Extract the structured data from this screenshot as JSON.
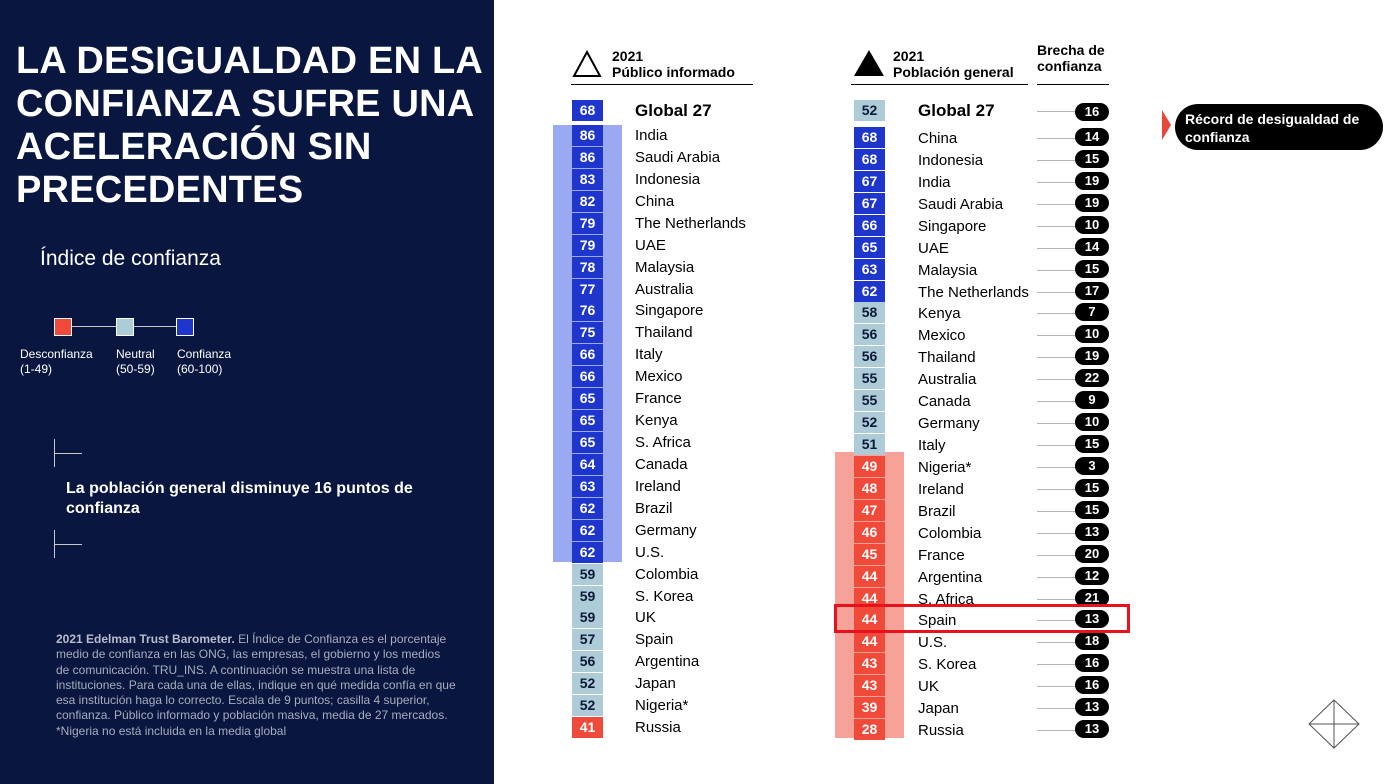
{
  "title": "LA DESIGUALDAD EN LA CONFIANZA SUFRE UNA ACELERACIÓN SIN PRECEDENTES",
  "subtitle": "Índice de confianza",
  "legend": [
    {
      "label": "Desconfianza",
      "range": "(1-49)",
      "color": "#f04b3a"
    },
    {
      "label": "Neutral",
      "range": "(50-59)",
      "color": "#aecbd8"
    },
    {
      "label": "Confianza",
      "range": "(60-100)",
      "color": "#1f36cc"
    }
  ],
  "callout": "La población general disminuye 16 puntos de confianza",
  "footnote": {
    "lead": "2021 Edelman Trust Barometer.",
    "body": " El Índice de Confianza es el porcentaje medio de confianza en las ONG, las empresas, el gobierno y los medios de comunicación. TRU_INS. A continuación se muestra una lista de instituciones. Para cada una de ellas, indique en qué medida confía en que esa institución haga lo correcto. Escala de 9 puntos; casilla 4 superior, confianza. Público informado y población masiva, media de 27 mercados.",
    "note": "*Nigeria no está incluida en la media global"
  },
  "colors": {
    "distrust": "#f04b3a",
    "neutral": "#aecbd8",
    "trust": "#1f36cc",
    "distrust_band": "#f7a298",
    "trust_band": "#9aa9f2",
    "navy": "#09163f"
  },
  "headers": {
    "informed_line1": "2021",
    "informed_line2": "Público informado",
    "general_line1": "2021",
    "general_line2": "Población general",
    "gap_line1": "Brecha de",
    "gap_line2": "confianza"
  },
  "record_label": "Récord de desigualdad de confianza",
  "highlighted_country": "Spain",
  "chart_data": [
    {
      "type": "table",
      "title": "2021 Público informado",
      "global": {
        "label": "Global 27",
        "value": 68
      },
      "rows": [
        {
          "country": "India",
          "value": 86
        },
        {
          "country": "Saudi Arabia",
          "value": 86
        },
        {
          "country": "Indonesia",
          "value": 83
        },
        {
          "country": "China",
          "value": 82
        },
        {
          "country": "The Netherlands",
          "value": 79
        },
        {
          "country": "UAE",
          "value": 79
        },
        {
          "country": "Malaysia",
          "value": 78
        },
        {
          "country": "Australia",
          "value": 77
        },
        {
          "country": "Singapore",
          "value": 76
        },
        {
          "country": "Thailand",
          "value": 75
        },
        {
          "country": "Italy",
          "value": 66
        },
        {
          "country": "Mexico",
          "value": 66
        },
        {
          "country": "France",
          "value": 65
        },
        {
          "country": "Kenya",
          "value": 65
        },
        {
          "country": "S. Africa",
          "value": 65
        },
        {
          "country": "Canada",
          "value": 64
        },
        {
          "country": "Ireland",
          "value": 63
        },
        {
          "country": "Brazil",
          "value": 62
        },
        {
          "country": "Germany",
          "value": 62
        },
        {
          "country": "U.S.",
          "value": 62
        },
        {
          "country": "Colombia",
          "value": 59
        },
        {
          "country": "S. Korea",
          "value": 59
        },
        {
          "country": "UK",
          "value": 59
        },
        {
          "country": "Spain",
          "value": 57
        },
        {
          "country": "Argentina",
          "value": 56
        },
        {
          "country": "Japan",
          "value": 52
        },
        {
          "country": "Nigeria*",
          "value": 52
        },
        {
          "country": "Russia",
          "value": 41
        }
      ]
    },
    {
      "type": "table",
      "title": "2021 Población general",
      "gap_title": "Brecha de confianza",
      "global": {
        "label": "Global 27",
        "value": 52,
        "gap": 16
      },
      "rows": [
        {
          "country": "China",
          "value": 68,
          "gap": 14
        },
        {
          "country": "Indonesia",
          "value": 68,
          "gap": 15
        },
        {
          "country": "India",
          "value": 67,
          "gap": 19
        },
        {
          "country": "Saudi Arabia",
          "value": 67,
          "gap": 19
        },
        {
          "country": "Singapore",
          "value": 66,
          "gap": 10
        },
        {
          "country": "UAE",
          "value": 65,
          "gap": 14
        },
        {
          "country": "Malaysia",
          "value": 63,
          "gap": 15
        },
        {
          "country": "The Netherlands",
          "value": 62,
          "gap": 17
        },
        {
          "country": "Kenya",
          "value": 58,
          "gap": 7
        },
        {
          "country": "Mexico",
          "value": 56,
          "gap": 10
        },
        {
          "country": "Thailand",
          "value": 56,
          "gap": 19
        },
        {
          "country": "Australia",
          "value": 55,
          "gap": 22
        },
        {
          "country": "Canada",
          "value": 55,
          "gap": 9
        },
        {
          "country": "Germany",
          "value": 52,
          "gap": 10
        },
        {
          "country": "Italy",
          "value": 51,
          "gap": 15
        },
        {
          "country": "Nigeria*",
          "value": 49,
          "gap": 3
        },
        {
          "country": "Ireland",
          "value": 48,
          "gap": 15
        },
        {
          "country": "Brazil",
          "value": 47,
          "gap": 15
        },
        {
          "country": "Colombia",
          "value": 46,
          "gap": 13
        },
        {
          "country": "France",
          "value": 45,
          "gap": 20
        },
        {
          "country": "Argentina",
          "value": 44,
          "gap": 12
        },
        {
          "country": "S. Africa",
          "value": 44,
          "gap": 21
        },
        {
          "country": "Spain",
          "value": 44,
          "gap": 13
        },
        {
          "country": "U.S.",
          "value": 44,
          "gap": 18
        },
        {
          "country": "S. Korea",
          "value": 43,
          "gap": 16
        },
        {
          "country": "UK",
          "value": 43,
          "gap": 16
        },
        {
          "country": "Japan",
          "value": 39,
          "gap": 13
        },
        {
          "country": "Russia",
          "value": 28,
          "gap": 13
        }
      ]
    }
  ]
}
